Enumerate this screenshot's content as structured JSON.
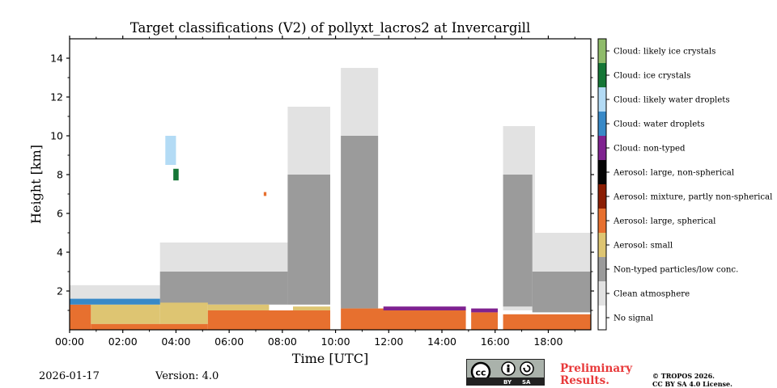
{
  "chart_data": {
    "type": "heatmap",
    "title": "Target classifications (V2) of pollyxt_lacros2 at Invercargill",
    "xlabel": "Time [UTC]",
    "ylabel": "Height [km]",
    "xlim": [
      0,
      19.6
    ],
    "ylim": [
      0,
      15
    ],
    "x_ticks": [
      {
        "value": 0,
        "label": "00:00"
      },
      {
        "value": 2,
        "label": "02:00"
      },
      {
        "value": 4,
        "label": "04:00"
      },
      {
        "value": 6,
        "label": "06:00"
      },
      {
        "value": 8,
        "label": "08:00"
      },
      {
        "value": 10,
        "label": "10:00"
      },
      {
        "value": 12,
        "label": "12:00"
      },
      {
        "value": 14,
        "label": "14:00"
      },
      {
        "value": 16,
        "label": "16:00"
      },
      {
        "value": 18,
        "label": "18:00"
      }
    ],
    "y_ticks": [
      {
        "value": 2,
        "label": "2"
      },
      {
        "value": 4,
        "label": "4"
      },
      {
        "value": 6,
        "label": "6"
      },
      {
        "value": 8,
        "label": "8"
      },
      {
        "value": 10,
        "label": "10"
      },
      {
        "value": 12,
        "label": "12"
      },
      {
        "value": 14,
        "label": "14"
      }
    ],
    "classes": [
      {
        "id": 0,
        "label": "No signal",
        "color": "#ffffff"
      },
      {
        "id": 1,
        "label": "Clean atmosphere",
        "color": "#e2e2e2"
      },
      {
        "id": 2,
        "label": "Non-typed particles/low conc.",
        "color": "#9b9b9b"
      },
      {
        "id": 3,
        "label": "Aerosol: small",
        "color": "#dec572"
      },
      {
        "id": 4,
        "label": "Aerosol: large, spherical",
        "color": "#e7702f"
      },
      {
        "id": 5,
        "label": "Aerosol: mixture, partly non-spherical",
        "color": "#8b1e04"
      },
      {
        "id": 6,
        "label": "Aerosol: large, non-spherical",
        "color": "#050505"
      },
      {
        "id": 7,
        "label": "Cloud: non-typed",
        "color": "#7f2290"
      },
      {
        "id": 8,
        "label": "Cloud: water droplets",
        "color": "#3889c7"
      },
      {
        "id": 9,
        "label": "Cloud: likely water droplets",
        "color": "#b3dbf5"
      },
      {
        "id": 10,
        "label": "Cloud: ice crystals",
        "color": "#157636"
      },
      {
        "id": 11,
        "label": "Cloud: likely ice crystals",
        "color": "#8fbb6a"
      }
    ],
    "regions": [
      {
        "class": 1,
        "t0": 0.0,
        "t1": 3.4,
        "h0": 1.5,
        "h1": 2.3
      },
      {
        "class": 1,
        "t0": 3.4,
        "t1": 8.2,
        "h0": 1.8,
        "h1": 4.5
      },
      {
        "class": 1,
        "t0": 8.2,
        "t1": 9.8,
        "h0": 1.3,
        "h1": 11.5
      },
      {
        "class": 1,
        "t0": 10.2,
        "t1": 11.6,
        "h0": 1.3,
        "h1": 13.5
      },
      {
        "class": 1,
        "t0": 16.3,
        "t1": 19.6,
        "h0": 1.0,
        "h1": 5.0
      },
      {
        "class": 1,
        "t0": 16.3,
        "t1": 17.5,
        "h0": 5.0,
        "h1": 10.5
      },
      {
        "class": 2,
        "t0": 3.4,
        "t1": 8.2,
        "h0": 1.3,
        "h1": 3.0
      },
      {
        "class": 2,
        "t0": 8.2,
        "t1": 9.8,
        "h0": 1.3,
        "h1": 8.0
      },
      {
        "class": 2,
        "t0": 10.2,
        "t1": 11.6,
        "h0": 1.1,
        "h1": 10.0
      },
      {
        "class": 2,
        "t0": 16.3,
        "t1": 17.4,
        "h0": 1.2,
        "h1": 8.0
      },
      {
        "class": 2,
        "t0": 17.4,
        "t1": 19.6,
        "h0": 0.9,
        "h1": 3.0
      },
      {
        "class": 3,
        "t0": 0.8,
        "t1": 3.4,
        "h0": 0.3,
        "h1": 1.3
      },
      {
        "class": 3,
        "t0": 3.4,
        "t1": 5.2,
        "h0": 0.3,
        "h1": 1.4
      },
      {
        "class": 3,
        "t0": 5.2,
        "t1": 7.5,
        "h0": 1.0,
        "h1": 1.3
      },
      {
        "class": 3,
        "t0": 8.4,
        "t1": 9.8,
        "h0": 0.8,
        "h1": 1.2
      },
      {
        "class": 3,
        "t0": 11.6,
        "t1": 14.0,
        "h0": 0.9,
        "h1": 1.0
      },
      {
        "class": 4,
        "t0": 0.0,
        "t1": 0.8,
        "h0": 0.0,
        "h1": 1.3
      },
      {
        "class": 4,
        "t0": 0.8,
        "t1": 5.2,
        "h0": 0.0,
        "h1": 0.3
      },
      {
        "class": 4,
        "t0": 5.2,
        "t1": 9.8,
        "h0": 0.0,
        "h1": 1.0
      },
      {
        "class": 4,
        "t0": 10.2,
        "t1": 14.9,
        "h0": 0.0,
        "h1": 1.1
      },
      {
        "class": 4,
        "t0": 15.1,
        "t1": 16.1,
        "h0": 0.0,
        "h1": 0.9
      },
      {
        "class": 4,
        "t0": 16.3,
        "t1": 19.6,
        "h0": 0.0,
        "h1": 0.8
      },
      {
        "class": 7,
        "t0": 11.8,
        "t1": 14.9,
        "h0": 1.0,
        "h1": 1.2
      },
      {
        "class": 7,
        "t0": 15.1,
        "t1": 16.1,
        "h0": 0.9,
        "h1": 1.1
      },
      {
        "class": 8,
        "t0": 0.0,
        "t1": 3.4,
        "h0": 1.3,
        "h1": 1.6
      },
      {
        "class": 9,
        "t0": 3.6,
        "t1": 4.0,
        "h0": 8.5,
        "h1": 10.0
      },
      {
        "class": 10,
        "t0": 3.9,
        "t1": 4.1,
        "h0": 7.7,
        "h1": 8.3
      },
      {
        "class": 4,
        "t0": 7.3,
        "t1": 7.4,
        "h0": 6.9,
        "h1": 7.1
      }
    ]
  },
  "footer": {
    "date": "2026-01-17",
    "version": "Version: 4.0",
    "cc_by": "BY",
    "cc_sa": "SA",
    "preliminary_line1": "Preliminary",
    "preliminary_line2": "Results.",
    "copyright_line1": "© TROPOS 2026.",
    "copyright_line2": "CC BY SA 4.0 License."
  }
}
